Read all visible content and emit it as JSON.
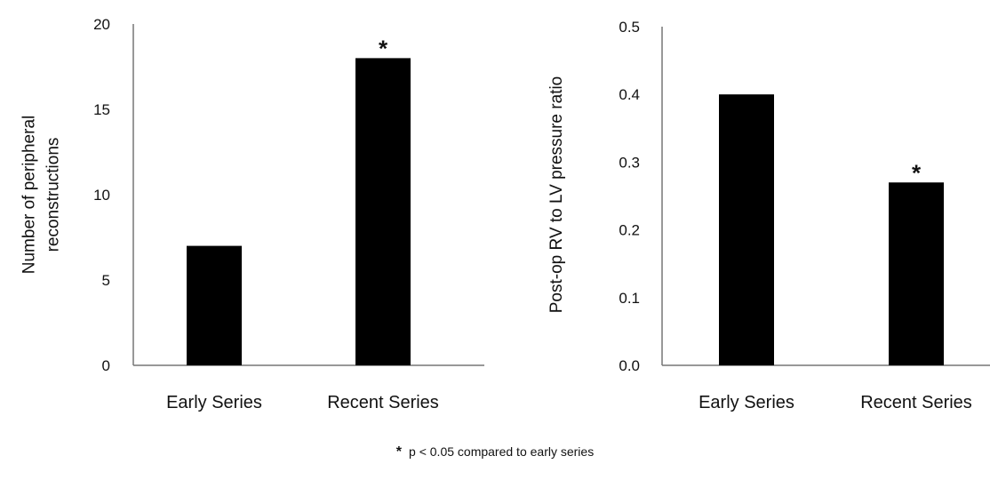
{
  "chart_data": [
    {
      "type": "bar",
      "categories": [
        "Early Series",
        "Recent Series"
      ],
      "values": [
        7,
        18
      ],
      "ylabel": "Number of peripheral reconstructions",
      "ylabel_lines": [
        "Number of peripheral",
        "reconstructions"
      ],
      "ylim": [
        0,
        20
      ],
      "yticks": [
        "0",
        "5",
        "10",
        "15",
        "20"
      ],
      "ytick_values": [
        0,
        5,
        10,
        15,
        20
      ],
      "annotations": [
        "",
        "*"
      ],
      "bar_color": "#000000",
      "grid": false
    },
    {
      "type": "bar",
      "categories": [
        "Early Series",
        "Recent Series"
      ],
      "values": [
        0.4,
        0.27
      ],
      "ylabel": "Post-op RV to LV pressure ratio",
      "ylabel_lines": [
        "Post-op RV to LV pressure ratio"
      ],
      "ylim": [
        0,
        0.5
      ],
      "yticks": [
        "0.0",
        "0.1",
        "0.2",
        "0.3",
        "0.4",
        "0.5"
      ],
      "ytick_values": [
        0,
        0.1,
        0.2,
        0.3,
        0.4,
        0.5
      ],
      "annotations": [
        "",
        "*"
      ],
      "bar_color": "#000000",
      "grid": false
    }
  ],
  "footnote": {
    "symbol": "*",
    "text": "p < 0.05 compared to early series"
  }
}
